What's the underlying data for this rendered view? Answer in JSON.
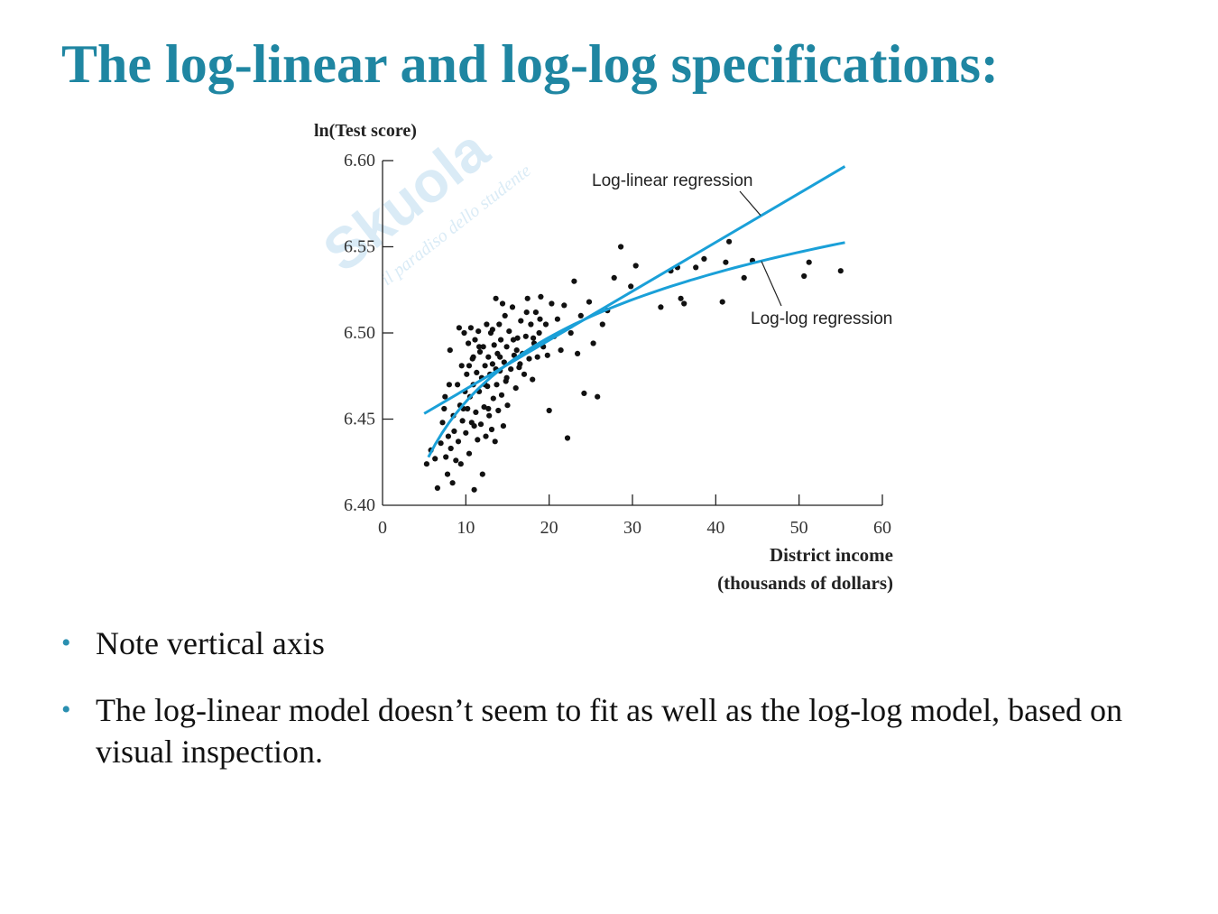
{
  "slide": {
    "title": "The log-linear and log-log specifications:",
    "bullets": [
      "Note vertical axis",
      "The log-linear model doesn’t seem to fit as well as the log-log model, based on visual inspection."
    ]
  },
  "colors": {
    "title": "#1f86a2",
    "bullet_marker": "#2a8fb0",
    "fit_lines": "#1aa0d8",
    "points": "#111111",
    "axes": "#222222",
    "watermark": "#bcdcef"
  },
  "watermark": {
    "brand": "Skuola.net",
    "tagline": "il paradiso dello studente"
  },
  "chart_data": {
    "type": "scatter",
    "ylabel": "ln(Test score)",
    "xlabel_lines": [
      "District income",
      "(thousands of dollars)"
    ],
    "xlim": [
      0,
      60
    ],
    "ylim": [
      6.4,
      6.6
    ],
    "x_ticks": [
      0,
      10,
      20,
      30,
      40,
      50,
      60
    ],
    "y_ticks": [
      "6.40",
      "6.45",
      "6.50",
      "6.55",
      "6.60"
    ],
    "grid": false,
    "annotations": [
      {
        "text": "Log-linear regression",
        "target": "log-linear"
      },
      {
        "text": "Log-log regression",
        "target": "log-log"
      }
    ],
    "series": [
      {
        "kind": "line",
        "id": "log-linear",
        "intercept": 6.439,
        "slope": 0.00284,
        "x_range": [
          5,
          55.5
        ]
      },
      {
        "kind": "line",
        "id": "log-log",
        "intercept": 6.336,
        "slope_ln_x": 0.0539,
        "x_range": [
          5.5,
          55.5
        ]
      },
      {
        "kind": "scatter",
        "id": "districts",
        "points": [
          [
            5.3,
            6.424
          ],
          [
            5.8,
            6.432
          ],
          [
            6.3,
            6.427
          ],
          [
            6.6,
            6.41
          ],
          [
            7.0,
            6.436
          ],
          [
            7.2,
            6.448
          ],
          [
            7.4,
            6.456
          ],
          [
            7.5,
            6.463
          ],
          [
            7.6,
            6.428
          ],
          [
            7.8,
            6.418
          ],
          [
            7.9,
            6.44
          ],
          [
            8.1,
            6.49
          ],
          [
            8.2,
            6.433
          ],
          [
            8.4,
            6.413
          ],
          [
            8.5,
            6.452
          ],
          [
            8.6,
            6.443
          ],
          [
            8.8,
            6.426
          ],
          [
            9.0,
            6.47
          ],
          [
            9.1,
            6.437
          ],
          [
            9.3,
            6.458
          ],
          [
            9.4,
            6.424
          ],
          [
            9.5,
            6.481
          ],
          [
            9.6,
            6.449
          ],
          [
            9.8,
            6.5
          ],
          [
            9.9,
            6.466
          ],
          [
            10.0,
            6.442
          ],
          [
            10.1,
            6.476
          ],
          [
            10.2,
            6.456
          ],
          [
            10.3,
            6.494
          ],
          [
            10.4,
            6.43
          ],
          [
            10.5,
            6.463
          ],
          [
            10.6,
            6.503
          ],
          [
            10.7,
            6.448
          ],
          [
            10.8,
            6.485
          ],
          [
            10.9,
            6.47
          ],
          [
            11.0,
            6.409
          ],
          [
            11.1,
            6.496
          ],
          [
            11.2,
            6.454
          ],
          [
            11.3,
            6.477
          ],
          [
            11.4,
            6.438
          ],
          [
            11.5,
            6.501
          ],
          [
            11.6,
            6.466
          ],
          [
            11.7,
            6.489
          ],
          [
            11.8,
            6.447
          ],
          [
            11.9,
            6.474
          ],
          [
            12.0,
            6.418
          ],
          [
            12.1,
            6.492
          ],
          [
            12.2,
            6.457
          ],
          [
            12.3,
            6.481
          ],
          [
            12.4,
            6.44
          ],
          [
            12.5,
            6.505
          ],
          [
            12.6,
            6.469
          ],
          [
            12.7,
            6.486
          ],
          [
            12.8,
            6.452
          ],
          [
            12.9,
            6.476
          ],
          [
            13.0,
            6.5
          ],
          [
            13.1,
            6.444
          ],
          [
            13.2,
            6.482
          ],
          [
            13.3,
            6.462
          ],
          [
            13.4,
            6.493
          ],
          [
            13.5,
            6.437
          ],
          [
            13.6,
            6.52
          ],
          [
            13.7,
            6.47
          ],
          [
            13.8,
            6.488
          ],
          [
            13.9,
            6.455
          ],
          [
            14.0,
            6.505
          ],
          [
            14.1,
            6.478
          ],
          [
            14.2,
            6.496
          ],
          [
            14.3,
            6.464
          ],
          [
            14.4,
            6.517
          ],
          [
            14.5,
            6.446
          ],
          [
            14.6,
            6.483
          ],
          [
            14.7,
            6.51
          ],
          [
            14.8,
            6.472
          ],
          [
            14.9,
            6.492
          ],
          [
            15.0,
            6.458
          ],
          [
            15.2,
            6.501
          ],
          [
            15.4,
            6.479
          ],
          [
            15.6,
            6.515
          ],
          [
            15.8,
            6.487
          ],
          [
            16.0,
            6.468
          ],
          [
            16.2,
            6.497
          ],
          [
            16.4,
            6.48
          ],
          [
            16.6,
            6.507
          ],
          [
            16.8,
            6.488
          ],
          [
            17.0,
            6.476
          ],
          [
            17.2,
            6.498
          ],
          [
            17.4,
            6.52
          ],
          [
            17.6,
            6.485
          ],
          [
            17.8,
            6.505
          ],
          [
            18.0,
            6.473
          ],
          [
            18.2,
            6.494
          ],
          [
            18.4,
            6.512
          ],
          [
            18.6,
            6.486
          ],
          [
            18.8,
            6.5
          ],
          [
            19.0,
            6.521
          ],
          [
            19.3,
            6.492
          ],
          [
            19.6,
            6.505
          ],
          [
            20.0,
            6.455
          ],
          [
            20.3,
            6.517
          ],
          [
            20.6,
            6.498
          ],
          [
            21.0,
            6.508
          ],
          [
            21.4,
            6.49
          ],
          [
            21.8,
            6.516
          ],
          [
            22.2,
            6.439
          ],
          [
            22.6,
            6.5
          ],
          [
            23.0,
            6.53
          ],
          [
            23.4,
            6.488
          ],
          [
            23.8,
            6.51
          ],
          [
            24.2,
            6.465
          ],
          [
            24.8,
            6.518
          ],
          [
            25.3,
            6.494
          ],
          [
            25.8,
            6.463
          ],
          [
            26.4,
            6.505
          ],
          [
            27.0,
            6.513
          ],
          [
            27.8,
            6.532
          ],
          [
            28.6,
            6.55
          ],
          [
            29.8,
            6.527
          ],
          [
            30.4,
            6.539
          ],
          [
            33.4,
            6.515
          ],
          [
            34.6,
            6.536
          ],
          [
            35.4,
            6.538
          ],
          [
            35.8,
            6.52
          ],
          [
            36.2,
            6.517
          ],
          [
            37.6,
            6.538
          ],
          [
            38.6,
            6.543
          ],
          [
            40.8,
            6.518
          ],
          [
            41.2,
            6.541
          ],
          [
            41.6,
            6.553
          ],
          [
            43.4,
            6.532
          ],
          [
            44.4,
            6.542
          ],
          [
            50.6,
            6.533
          ],
          [
            51.2,
            6.541
          ],
          [
            55.0,
            6.536
          ],
          [
            8.0,
            6.47
          ],
          [
            9.2,
            6.503
          ],
          [
            10.9,
            6.486
          ],
          [
            11.6,
            6.492
          ],
          [
            12.3,
            6.47
          ],
          [
            13.2,
            6.502
          ],
          [
            14.1,
            6.486
          ],
          [
            14.9,
            6.474
          ],
          [
            15.7,
            6.496
          ],
          [
            16.5,
            6.482
          ],
          [
            17.3,
            6.512
          ],
          [
            18.1,
            6.497
          ],
          [
            18.9,
            6.508
          ],
          [
            19.8,
            6.487
          ],
          [
            12.7,
            6.456
          ],
          [
            11.0,
            6.446
          ],
          [
            9.7,
            6.456
          ],
          [
            10.4,
            6.481
          ],
          [
            13.6,
            6.479
          ],
          [
            16.1,
            6.49
          ]
        ]
      }
    ]
  }
}
